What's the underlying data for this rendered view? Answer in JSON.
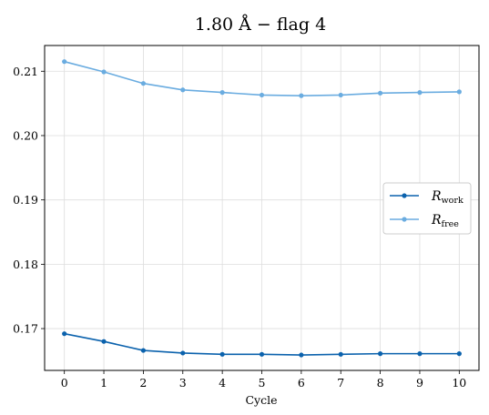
{
  "chart_data": {
    "type": "line",
    "title": "1.80 Å  −  flag 4",
    "xlabel": "Cycle",
    "ylabel": "",
    "x": [
      0,
      1,
      2,
      3,
      4,
      5,
      6,
      7,
      8,
      9,
      10
    ],
    "xticks": [
      "0",
      "1",
      "2",
      "3",
      "4",
      "5",
      "6",
      "7",
      "8",
      "9",
      "10"
    ],
    "xlim": [
      -0.5,
      10.5
    ],
    "ylim": [
      0.1635,
      0.214
    ],
    "yticks": [
      "0.17",
      "0.18",
      "0.19",
      "0.20",
      "0.21"
    ],
    "grid": true,
    "legend_position": "center-right",
    "series": [
      {
        "name": "R_work",
        "label_main": "R",
        "label_sub": "work",
        "color": "#0b62ad",
        "values": [
          0.1692,
          0.168,
          0.1666,
          0.1662,
          0.166,
          0.166,
          0.1659,
          0.166,
          0.1661,
          0.1661,
          0.1661
        ]
      },
      {
        "name": "R_free",
        "label_main": "R",
        "label_sub": "free",
        "color": "#6aace0",
        "values": [
          0.2115,
          0.2099,
          0.2081,
          0.2071,
          0.2067,
          0.2063,
          0.2062,
          0.2063,
          0.2066,
          0.2067,
          0.2068
        ]
      }
    ]
  }
}
